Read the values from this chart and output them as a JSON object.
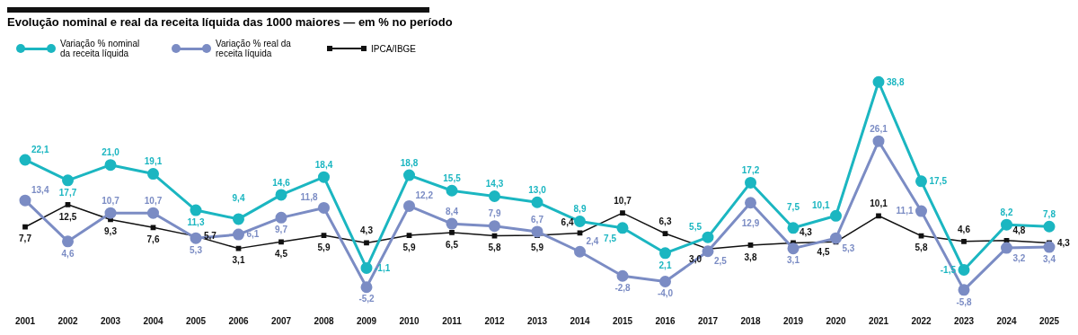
{
  "chart_data": {
    "type": "line",
    "title": "Evolução nominal e real da receita líquida das 1000 maiores — em % no período",
    "categories": [
      "2001",
      "2002",
      "2003",
      "2004",
      "2005",
      "2006",
      "2007",
      "2008",
      "2009",
      "2010",
      "2011",
      "2012",
      "2013",
      "2014",
      "2015",
      "2016",
      "2017",
      "2018",
      "2019",
      "2020",
      "2021",
      "2022",
      "2023",
      "2024",
      "2025"
    ],
    "series": [
      {
        "name": "Variação % nominal da receita líquida",
        "color": "#1bb6c1",
        "marker": "circle",
        "values": [
          22.1,
          17.7,
          21.0,
          19.1,
          11.3,
          9.4,
          14.6,
          18.4,
          -1.1,
          18.8,
          15.5,
          14.3,
          13.0,
          8.9,
          7.5,
          2.1,
          5.5,
          17.2,
          7.5,
          10.1,
          38.8,
          17.5,
          -1.5,
          8.2,
          7.8
        ],
        "value_labels": [
          "22,1",
          "17,7",
          "21,0",
          "19,1",
          "11,3",
          "9,4",
          "14,6",
          "18,4",
          "-1,1",
          "18,8",
          "15,5",
          "14,3",
          "13,0",
          "8,9",
          "7,5",
          "2,1",
          "5,5",
          "17,2",
          "7,5",
          "10,1",
          "38,8",
          "17,5",
          "-1,5",
          "8,2",
          "7,8"
        ]
      },
      {
        "name": "Variação % real da receita líquida",
        "color": "#7b8cc4",
        "marker": "circle",
        "values": [
          13.4,
          4.6,
          10.7,
          10.7,
          5.3,
          6.1,
          9.7,
          11.8,
          -5.2,
          12.2,
          8.4,
          7.9,
          6.7,
          2.4,
          -2.8,
          -4.0,
          2.5,
          12.9,
          3.1,
          5.3,
          26.1,
          11.1,
          -5.8,
          3.2,
          3.4
        ],
        "value_labels": [
          "13,4",
          "4,6",
          "10,7",
          "10,7",
          "5,3",
          "6,1",
          "9,7",
          "11,8",
          "-5,2",
          "12,2",
          "8,4",
          "7,9",
          "6,7",
          "2,4",
          "-2,8",
          "-4,0",
          "2,5",
          "12,9",
          "3,1",
          "5,3",
          "26,1",
          "11,1",
          "-5,8",
          "3,2",
          "3,4"
        ]
      },
      {
        "name": "IPCA/IBGE",
        "color": "#111111",
        "marker": "square",
        "values": [
          7.7,
          12.5,
          9.3,
          7.6,
          5.7,
          3.1,
          4.5,
          5.9,
          4.3,
          5.9,
          6.5,
          5.8,
          5.9,
          6.4,
          10.7,
          6.3,
          3.0,
          3.8,
          4.3,
          4.5,
          10.1,
          5.8,
          4.6,
          4.8,
          4.3
        ],
        "value_labels": [
          "7,7",
          "12,5",
          "9,3",
          "7,6",
          "5,7",
          "3,1",
          "4,5",
          "5,9",
          "4,3",
          "5,9",
          "6,5",
          "5,8",
          "5,9",
          "6,4",
          "10,7",
          "6,3",
          "3,0",
          "3,8",
          "4,3",
          "4,5",
          "10,1",
          "5,8",
          "4,6",
          "4,8",
          "4,3"
        ]
      }
    ],
    "grid": false,
    "legend": "top left"
  }
}
